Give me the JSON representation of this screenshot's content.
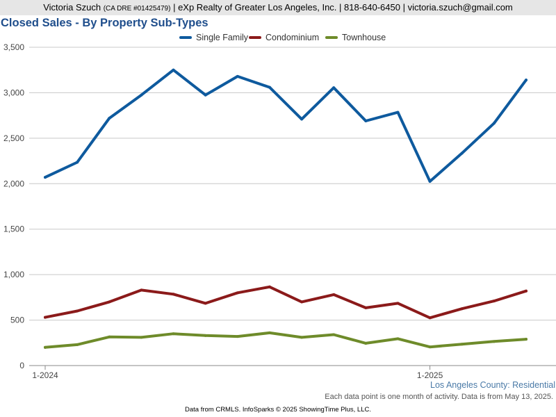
{
  "header": {
    "agent_name": "Victoria Szuch",
    "dre": "(CA DRE #01425479)",
    "details": "| eXp Realty of Greater Los Angeles, Inc. | 818-640-6450 | victoria.szuch@gmail.com"
  },
  "chart_data": {
    "type": "line",
    "title": "Closed Sales - By Property Sub-Types",
    "xlabel": "",
    "ylabel": "",
    "ylim": [
      0,
      3500
    ],
    "yticks": [
      0,
      500,
      1000,
      1500,
      2000,
      2500,
      3000,
      3500
    ],
    "ytick_labels": [
      "0",
      "500",
      "1,000",
      "1,500",
      "2,000",
      "2,500",
      "3,000",
      "3,500"
    ],
    "x": [
      "1-2024",
      "2-2024",
      "3-2024",
      "4-2024",
      "5-2024",
      "6-2024",
      "7-2024",
      "8-2024",
      "9-2024",
      "10-2024",
      "11-2024",
      "12-2024",
      "1-2025",
      "2-2025",
      "3-2025",
      "4-2025"
    ],
    "xtick_labels": [
      {
        "index": 0,
        "label": "1-2024"
      },
      {
        "index": 12,
        "label": "1-2025"
      }
    ],
    "grid": true,
    "legend_position": "top-center",
    "series": [
      {
        "name": "Single Family",
        "color": "#0e5a9e",
        "values": [
          2070,
          2235,
          2720,
          2975,
          3250,
          2975,
          3180,
          3060,
          2710,
          3055,
          2690,
          2785,
          2025,
          2335,
          2665,
          3140
        ]
      },
      {
        "name": "Condominium",
        "color": "#8b1a1a",
        "values": [
          530,
          600,
          700,
          830,
          785,
          685,
          800,
          865,
          700,
          780,
          635,
          685,
          525,
          625,
          710,
          820
        ]
      },
      {
        "name": "Townhouse",
        "color": "#6e8b2a",
        "values": [
          200,
          230,
          315,
          310,
          350,
          330,
          320,
          360,
          310,
          340,
          245,
          295,
          205,
          235,
          265,
          290
        ]
      }
    ]
  },
  "footer": {
    "region": "Los Angeles County: Residential",
    "note": "Each data point is one month of activity. Data is from May 13, 2025.",
    "source": "Data from CRMLS. InfoSparks © 2025 ShowingTime Plus, LLC."
  }
}
